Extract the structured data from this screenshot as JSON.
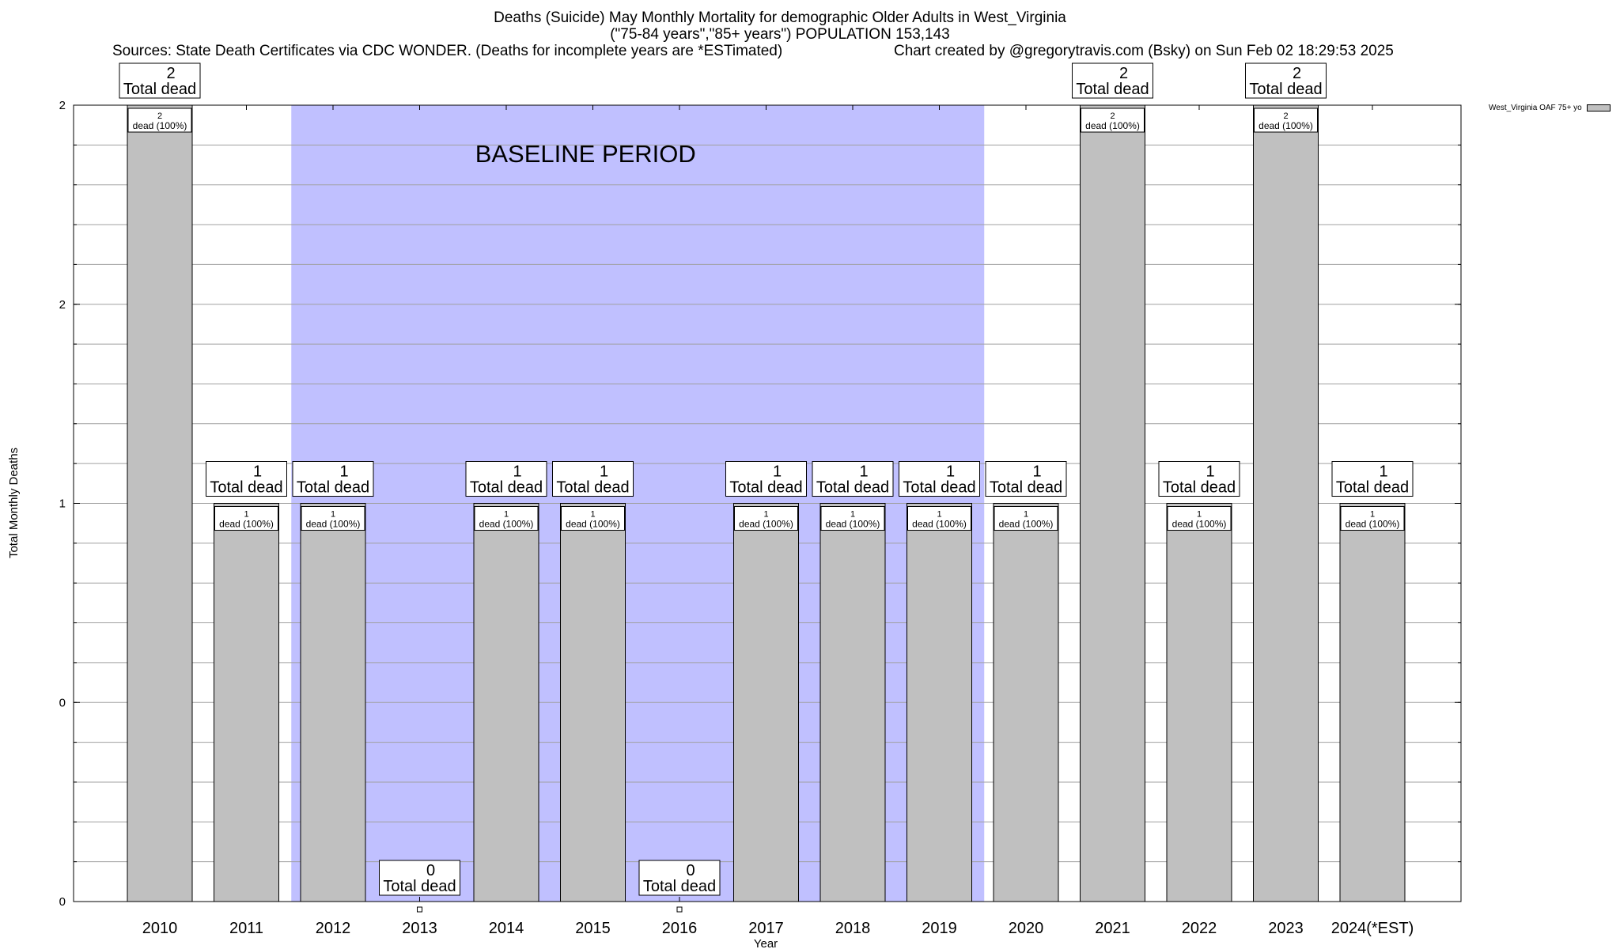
{
  "title": {
    "line1": "Deaths (Suicide) May Monthly Mortality for demographic Older Adults in West_Virginia",
    "line2": "(\"75-84 years\",\"85+ years\") POPULATION 153,143",
    "sources": "Sources: State Death Certificates via CDC WONDER. (Deaths for incomplete years are *ESTimated)",
    "credit": "Chart created by @gregorytravis.com (Bsky) on Sun Feb 02 18:29:53 2025"
  },
  "legend": {
    "label": "West_Virginia OAF 75+ yo"
  },
  "chart_data": {
    "type": "bar",
    "categories": [
      "2010",
      "2011",
      "2012",
      "2013",
      "2014",
      "2015",
      "2016",
      "2017",
      "2018",
      "2019",
      "2020",
      "2021",
      "2022",
      "2023",
      "2024(*EST)"
    ],
    "series": [
      {
        "name": "West_Virginia OAF 75+ yo",
        "values": [
          2,
          1,
          1,
          0,
          1,
          1,
          0,
          1,
          1,
          1,
          1,
          2,
          1,
          2,
          1
        ]
      }
    ],
    "top_labels": [
      "2",
      "1",
      "1",
      "0",
      "1",
      "1",
      "0",
      "1",
      "1",
      "1",
      "1",
      "2",
      "1",
      "2",
      "1"
    ],
    "total_label_text": "Total dead",
    "inner_labels": [
      "2",
      "1",
      "1",
      "",
      "1",
      "1",
      "",
      "1",
      "1",
      "1",
      "1",
      "2",
      "1",
      "2",
      "1"
    ],
    "inner_label_suffix": "dead (100%)",
    "xlabel": "Year",
    "ylabel": "Total Monthly Deaths",
    "ylim": [
      0,
      2
    ],
    "ytick_labels": [
      "0",
      "0",
      "1",
      "2",
      "2"
    ],
    "grid": true,
    "legend_position": "top-right",
    "baseline": {
      "label": "BASELINE PERIOD",
      "from": "2012",
      "to": "2019",
      "color": "#c0c0ff"
    },
    "bar_color": "#c0c0c0"
  }
}
